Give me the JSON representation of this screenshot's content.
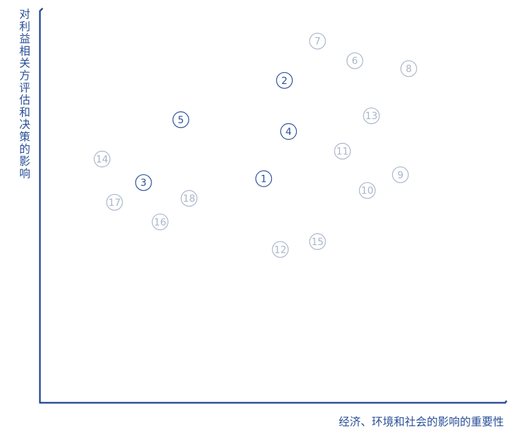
{
  "chart_data": {
    "type": "scatter",
    "title": "",
    "xlabel": "经济、环境和社会的影响的重要性",
    "ylabel": "对利益相关方评估和决策的影响",
    "grid": false,
    "legend": "none",
    "xlim": [
      0,
      10
    ],
    "ylim": [
      0,
      10
    ],
    "colors": {
      "axis": "#2a4f97",
      "primary": "#2a4f97",
      "secondary": "#aab5c9"
    },
    "points": [
      {
        "label": "1",
        "x": 5.4,
        "y": 5.7,
        "group": "primary"
      },
      {
        "label": "2",
        "x": 5.9,
        "y": 8.2,
        "group": "primary"
      },
      {
        "label": "3",
        "x": 2.5,
        "y": 5.6,
        "group": "primary"
      },
      {
        "label": "4",
        "x": 6.0,
        "y": 6.9,
        "group": "primary"
      },
      {
        "label": "5",
        "x": 3.4,
        "y": 7.2,
        "group": "primary"
      },
      {
        "label": "6",
        "x": 7.6,
        "y": 8.7,
        "group": "secondary"
      },
      {
        "label": "7",
        "x": 6.7,
        "y": 9.2,
        "group": "secondary"
      },
      {
        "label": "8",
        "x": 8.9,
        "y": 8.5,
        "group": "secondary"
      },
      {
        "label": "9",
        "x": 8.7,
        "y": 5.8,
        "group": "secondary"
      },
      {
        "label": "10",
        "x": 7.9,
        "y": 5.4,
        "group": "secondary"
      },
      {
        "label": "11",
        "x": 7.3,
        "y": 6.4,
        "group": "secondary"
      },
      {
        "label": "12",
        "x": 5.8,
        "y": 3.9,
        "group": "secondary"
      },
      {
        "label": "13",
        "x": 8.0,
        "y": 7.3,
        "group": "secondary"
      },
      {
        "label": "14",
        "x": 1.5,
        "y": 6.2,
        "group": "secondary"
      },
      {
        "label": "15",
        "x": 6.7,
        "y": 4.1,
        "group": "secondary"
      },
      {
        "label": "16",
        "x": 2.9,
        "y": 4.6,
        "group": "secondary"
      },
      {
        "label": "17",
        "x": 1.8,
        "y": 5.1,
        "group": "secondary"
      },
      {
        "label": "18",
        "x": 3.6,
        "y": 5.2,
        "group": "secondary"
      }
    ]
  }
}
